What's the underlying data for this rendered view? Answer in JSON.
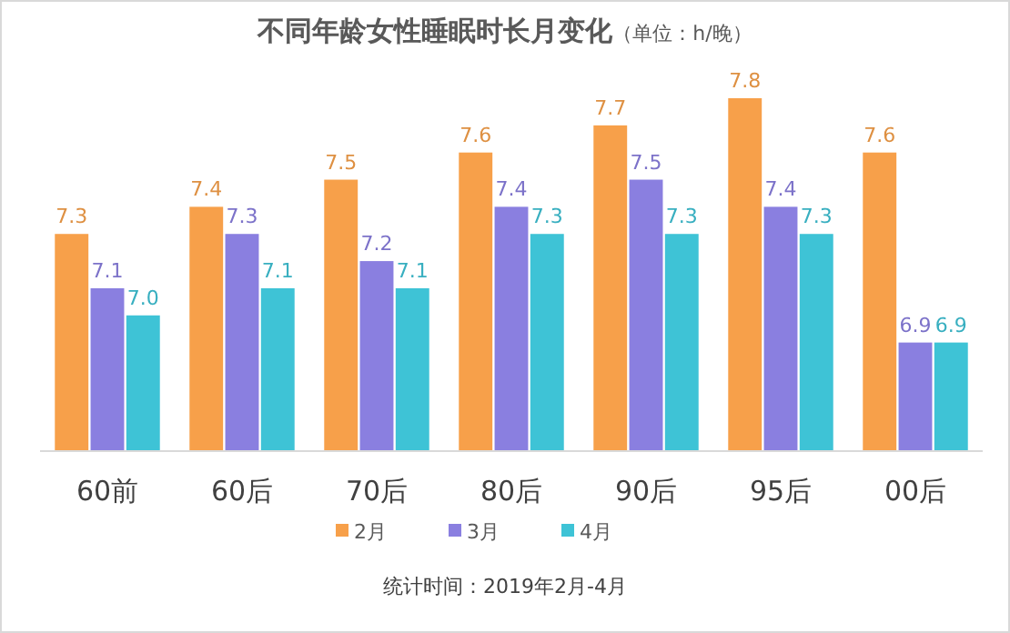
{
  "chart_data": {
    "type": "bar",
    "title": "不同年龄女性睡眠时长月变化",
    "subtitle": "（单位：h/晚）",
    "categories": [
      "60前",
      "60后",
      "70后",
      "80后",
      "90后",
      "95后",
      "00后"
    ],
    "series": [
      {
        "name": "2月",
        "color": "#f7a04a",
        "values": [
          7.3,
          7.4,
          7.5,
          7.6,
          7.7,
          7.8,
          7.6
        ],
        "value_labels": [
          "7.3",
          "7.4",
          "7.5",
          "7.6",
          "7.7",
          "7.8",
          "7.6"
        ]
      },
      {
        "name": "3月",
        "color": "#8a7fe0",
        "values": [
          7.1,
          7.3,
          7.2,
          7.4,
          7.5,
          7.4,
          6.9
        ],
        "value_labels": [
          "7.1",
          "7.3",
          "7.2",
          "7.4",
          "7.5",
          "7.4",
          "6.9"
        ]
      },
      {
        "name": "4月",
        "color": "#3ec3d6",
        "values": [
          7.0,
          7.1,
          7.1,
          7.3,
          7.3,
          7.3,
          6.9
        ],
        "value_labels": [
          "7.0",
          "7.1",
          "7.1",
          "7.3",
          "7.3",
          "7.3",
          "6.9"
        ]
      }
    ],
    "ylim": [
      6.5,
      7.8
    ],
    "tick_labels": "x",
    "grid": false,
    "legend": "bottom",
    "annotations": [
      "统计时间：2019年2月-4月"
    ]
  }
}
